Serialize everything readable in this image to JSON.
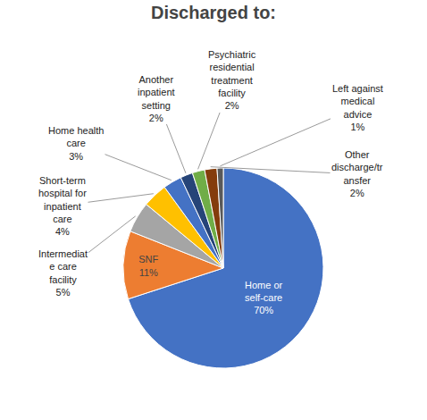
{
  "chart_data": {
    "type": "pie",
    "title": "Discharged to:",
    "categories": [
      "Home or\nself-care",
      "SNF",
      "Intermediat\ne care\nfacility",
      "Short-term\nhospital for\ninpatient\ncare",
      "Home health\ncare",
      "Another\ninpatient\nsetting",
      "Psychiatric\nresidential\ntreatment\nfacility",
      "Other\ndischarge/tr\nansfer",
      "Left against\nmedical\nadvice"
    ],
    "values": [
      70,
      11,
      5,
      4,
      3,
      2,
      2,
      2,
      1
    ],
    "value_labels": [
      "70%",
      "11%",
      "5%",
      "4%",
      "3%",
      "2%",
      "2%",
      "2%",
      "1%"
    ],
    "colors": [
      "#4472C4",
      "#ED7D31",
      "#A5A5A5",
      "#FFC000",
      "#4472C4",
      "#264478",
      "#70AD47",
      "#843C0C",
      "#595959"
    ],
    "data_labels": true
  }
}
